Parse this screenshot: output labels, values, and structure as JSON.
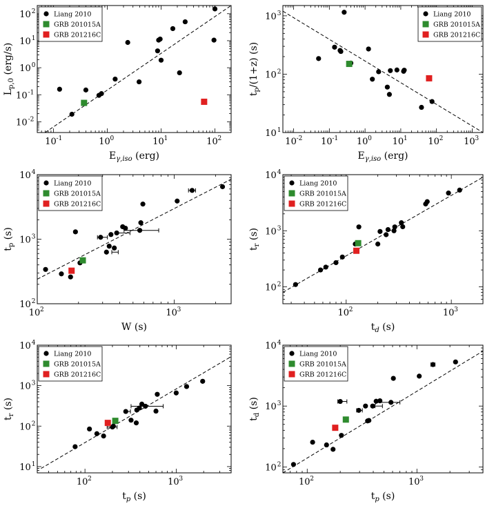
{
  "legend_labels": [
    "Liang 2010",
    "GRB 201015A",
    "GRB 201216C"
  ],
  "colors": {
    "liang": "#000000",
    "grb201015a": "#2e8b2e",
    "grb201216c": "#e02020"
  },
  "chart_data": [
    {
      "type": "scatter",
      "id": "p1",
      "xlabel": "E",
      "xlabel_sub": "γ,iso",
      "xlabel_unit": " (erg)",
      "ylabel": "L",
      "ylabel_sub": "p,0",
      "ylabel_unit": " (erg/s)",
      "xlim": [
        0.05,
        200
      ],
      "ylim": [
        0.004,
        200
      ],
      "xticks": [
        {
          "v": 0.1,
          "e": "-1"
        },
        {
          "v": 1,
          "e": "0"
        },
        {
          "v": 10,
          "e": "1"
        },
        {
          "v": 100,
          "e": "2"
        }
      ],
      "yticks": [
        {
          "v": 0.01,
          "e": "-2"
        },
        {
          "v": 0.1,
          "e": "-1"
        },
        {
          "v": 1,
          "e": "0"
        },
        {
          "v": 10,
          "e": "1"
        },
        {
          "v": 100,
          "e": "2"
        }
      ],
      "legend_position": "top-left",
      "fit_line": [
        [
          0.07,
          0.004
        ],
        [
          200,
          200
        ]
      ],
      "series": [
        {
          "name": "Liang 2010",
          "marker": "circle",
          "points": [
            [
              0.13,
              0.16
            ],
            [
              0.22,
              0.019
            ],
            [
              0.4,
              0.15
            ],
            [
              0.7,
              0.095
            ],
            [
              0.78,
              0.11
            ],
            [
              1.4,
              0.38
            ],
            [
              2.4,
              8.6
            ],
            [
              3.9,
              0.3
            ],
            [
              8.6,
              4.2
            ],
            [
              9.0,
              10.5
            ],
            [
              9.6,
              11.5
            ],
            [
              10.0,
              1.9
            ],
            [
              16.5,
              28
            ],
            [
              22,
              0.65
            ],
            [
              28,
              50
            ],
            [
              96,
              10.5
            ],
            [
              100,
              150
            ]
          ]
        },
        {
          "name": "GRB 201015A",
          "marker": "square",
          "points": [
            [
              0.37,
              0.05
            ]
          ]
        },
        {
          "name": "GRB 201216C",
          "marker": "square",
          "points": [
            [
              63,
              0.055
            ]
          ]
        }
      ]
    },
    {
      "type": "scatter",
      "id": "p2",
      "xlabel": "E",
      "xlabel_sub": "γ,iso",
      "xlabel_unit": " (erg)",
      "ylabel": "t",
      "ylabel_sub": "p",
      "ylabel_unit": "/(1+z) (s)",
      "xlim": [
        0.005,
        2000
      ],
      "ylim": [
        10,
        1500
      ],
      "xticks": [
        {
          "v": 0.01,
          "e": "-2"
        },
        {
          "v": 0.1,
          "e": "-1"
        },
        {
          "v": 1,
          "e": "0"
        },
        {
          "v": 10,
          "e": "1"
        },
        {
          "v": 100,
          "e": "2"
        },
        {
          "v": 1000,
          "e": "3"
        }
      ],
      "yticks": [
        {
          "v": 10,
          "e": "1"
        },
        {
          "v": 100,
          "e": "2"
        },
        {
          "v": 1000,
          "e": "3"
        }
      ],
      "legend_position": "top-right",
      "fit_line": [
        [
          0.005,
          1200
        ],
        [
          2000,
          10
        ]
      ],
      "series": [
        {
          "name": "Liang 2010",
          "marker": "circle",
          "points": [
            [
              0.05,
              185
            ],
            [
              0.14,
              290
            ],
            [
              0.2,
              255
            ],
            [
              0.21,
              245
            ],
            [
              0.26,
              1150
            ],
            [
              0.4,
              155
            ],
            [
              1.25,
              270
            ],
            [
              1.6,
              82
            ],
            [
              2.4,
              110
            ],
            [
              4.2,
              60
            ],
            [
              4.8,
              45
            ],
            [
              5.1,
              115
            ],
            [
              7.8,
              118
            ],
            [
              12,
              112
            ],
            [
              12.5,
              117
            ],
            [
              38,
              27
            ],
            [
              75,
              34
            ]
          ]
        },
        {
          "name": "GRB 201015A",
          "marker": "square",
          "points": [
            [
              0.36,
              150
            ]
          ]
        },
        {
          "name": "GRB 201216C",
          "marker": "square",
          "points": [
            [
              62,
              85
            ]
          ]
        }
      ]
    },
    {
      "type": "scatter",
      "id": "p3",
      "xlabel": "W",
      "xlabel_sub": "",
      "xlabel_unit": " (s)",
      "ylabel": "t",
      "ylabel_sub": "p",
      "ylabel_unit": " (s)",
      "xlim": [
        100,
        2600
      ],
      "ylim": [
        100,
        10000
      ],
      "xticks": [
        {
          "v": 100,
          "e": "2"
        },
        {
          "v": 1000,
          "e": "3"
        }
      ],
      "yticks": [
        {
          "v": 100,
          "e": "2"
        },
        {
          "v": 1000,
          "e": "3"
        },
        {
          "v": 10000,
          "e": "4"
        }
      ],
      "legend_position": "top-left",
      "fit_line": [
        [
          100,
          240
        ],
        [
          2600,
          8500
        ]
      ],
      "series": [
        {
          "name": "Liang 2010",
          "marker": "circle",
          "points": [
            [
              115,
              340
            ],
            [
              150,
              290
            ],
            [
              175,
              260
            ],
            [
              190,
              1300
            ],
            [
              205,
              430
            ],
            [
              290,
              1070
            ],
            [
              320,
              630
            ],
            [
              335,
              780
            ],
            [
              345,
              1180
            ],
            [
              365,
              730
            ],
            [
              380,
              1250
            ],
            [
              420,
              1560
            ],
            [
              440,
              1480
            ],
            [
              560,
              1370
            ],
            [
              570,
              1800
            ],
            [
              590,
              3500
            ],
            [
              1050,
              3900
            ],
            [
              1350,
              5700
            ],
            [
              2250,
              6500
            ]
          ],
          "xerr": [
            [
              300,
              25
            ],
            [
              370,
              20
            ],
            [
              430,
              45
            ],
            [
              600,
              170
            ],
            [
              1350,
              80
            ]
          ]
        },
        {
          "name": "GRB 201015A",
          "marker": "square",
          "points": [
            [
              215,
              470
            ]
          ]
        },
        {
          "name": "GRB 201216C",
          "marker": "square",
          "points": [
            [
              178,
              325
            ]
          ]
        }
      ]
    },
    {
      "type": "scatter",
      "id": "p4",
      "xlabel": "t",
      "xlabel_sub": "d",
      "xlabel_unit": " (s)",
      "ylabel": "t",
      "ylabel_sub": "r",
      "ylabel_unit": " (s)",
      "xlim": [
        25,
        2000
      ],
      "ylim": [
        50,
        10000
      ],
      "xticks": [
        {
          "v": 100,
          "e": "2"
        },
        {
          "v": 1000,
          "e": "3"
        }
      ],
      "yticks": [
        {
          "v": 100,
          "e": "2"
        },
        {
          "v": 1000,
          "e": "3"
        },
        {
          "v": 10000,
          "e": "4"
        }
      ],
      "legend_position": "top-left",
      "fit_line": [
        [
          25,
          80
        ],
        [
          2000,
          9000
        ]
      ],
      "series": [
        {
          "name": "Liang 2010",
          "marker": "circle",
          "points": [
            [
              33,
              110
            ],
            [
              57,
              200
            ],
            [
              64,
              225
            ],
            [
              80,
              270
            ],
            [
              92,
              340
            ],
            [
              122,
              580
            ],
            [
              132,
              1170
            ],
            [
              200,
              580
            ],
            [
              210,
              970
            ],
            [
              240,
              850
            ],
            [
              250,
              1050
            ],
            [
              285,
              1000
            ],
            [
              290,
              1170
            ],
            [
              335,
              1390
            ],
            [
              345,
              1180
            ],
            [
              570,
              3000
            ],
            [
              590,
              3300
            ],
            [
              940,
              4700
            ],
            [
              1200,
              5300
            ]
          ]
        },
        {
          "name": "GRB 201015A",
          "marker": "square",
          "points": [
            [
              130,
              600
            ]
          ]
        },
        {
          "name": "GRB 201216C",
          "marker": "square",
          "points": [
            [
              125,
              440
            ]
          ]
        }
      ]
    },
    {
      "type": "scatter",
      "id": "p5",
      "xlabel": "t",
      "xlabel_sub": "p",
      "xlabel_unit": " (s)",
      "ylabel": "t",
      "ylabel_sub": "r",
      "ylabel_unit": " (s)",
      "xlim": [
        30,
        4000
      ],
      "ylim": [
        7,
        10000
      ],
      "xticks": [
        {
          "v": 100,
          "e": "2"
        },
        {
          "v": 1000,
          "e": "3"
        }
      ],
      "yticks": [
        {
          "v": 10,
          "e": "1"
        },
        {
          "v": 100,
          "e": "2"
        },
        {
          "v": 1000,
          "e": "3"
        },
        {
          "v": 10000,
          "e": "4"
        }
      ],
      "legend_position": "top-left",
      "fit_line": [
        [
          33,
          9
        ],
        [
          4000,
          5200
        ]
      ],
      "series": [
        {
          "name": "Liang 2010",
          "marker": "circle",
          "points": [
            [
              78,
              31
            ],
            [
              112,
              85
            ],
            [
              135,
              65
            ],
            [
              160,
              57
            ],
            [
              200,
              95
            ],
            [
              205,
              100
            ],
            [
              280,
              230
            ],
            [
              320,
              140
            ],
            [
              365,
              120
            ],
            [
              370,
              250
            ],
            [
              395,
              280
            ],
            [
              420,
              350
            ],
            [
              460,
              310
            ],
            [
              600,
              235
            ],
            [
              620,
              610
            ],
            [
              1000,
              660
            ],
            [
              1300,
              950
            ],
            [
              1950,
              1280
            ]
          ],
          "xerr": [
            [
              200,
              25
            ],
            [
              295,
              20
            ],
            [
              520,
              200
            ]
          ]
        },
        {
          "name": "GRB 201015A",
          "marker": "square",
          "points": [
            [
              215,
              135
            ]
          ]
        },
        {
          "name": "GRB 201216C",
          "marker": "square",
          "points": [
            [
              178,
              120
            ]
          ]
        }
      ]
    },
    {
      "type": "scatter",
      "id": "p6",
      "xlabel": "t",
      "xlabel_sub": "p",
      "xlabel_unit": " (s)",
      "ylabel": "t",
      "ylabel_sub": "d",
      "ylabel_unit": " (s)",
      "xlim": [
        60,
        4000
      ],
      "ylim": [
        80,
        10000
      ],
      "xticks": [
        {
          "v": 100,
          "e": "2"
        },
        {
          "v": 1000,
          "e": "3"
        }
      ],
      "yticks": [
        {
          "v": 100,
          "e": "2"
        },
        {
          "v": 1000,
          "e": "3"
        },
        {
          "v": 10000,
          "e": "4"
        }
      ],
      "legend_position": "top-left",
      "fit_line": [
        [
          60,
          80
        ],
        [
          4000,
          8000
        ]
      ],
      "series": [
        {
          "name": "Liang 2010",
          "marker": "circle",
          "points": [
            [
              75,
              110
            ],
            [
              112,
              255
            ],
            [
              150,
              230
            ],
            [
              172,
              195
            ],
            [
              200,
              1190
            ],
            [
              205,
              330
            ],
            [
              295,
              850
            ],
            [
              340,
              1000
            ],
            [
              355,
              570
            ],
            [
              365,
              580
            ],
            [
              395,
              1000
            ],
            [
              425,
              1200
            ],
            [
              460,
              1220
            ],
            [
              580,
              1150
            ],
            [
              610,
              2850
            ],
            [
              1050,
              3100
            ],
            [
              1400,
              4800
            ],
            [
              2250,
              5300
            ]
          ],
          "xerr": [
            [
              210,
              20
            ],
            [
              300,
              18
            ],
            [
              450,
              35
            ],
            [
              560,
              140
            ],
            [
              1400,
              60
            ]
          ]
        },
        {
          "name": "GRB 201015A",
          "marker": "square",
          "points": [
            [
              225,
              600
            ]
          ]
        },
        {
          "name": "GRB 201216C",
          "marker": "square",
          "points": [
            [
              180,
              440
            ]
          ]
        }
      ]
    }
  ]
}
